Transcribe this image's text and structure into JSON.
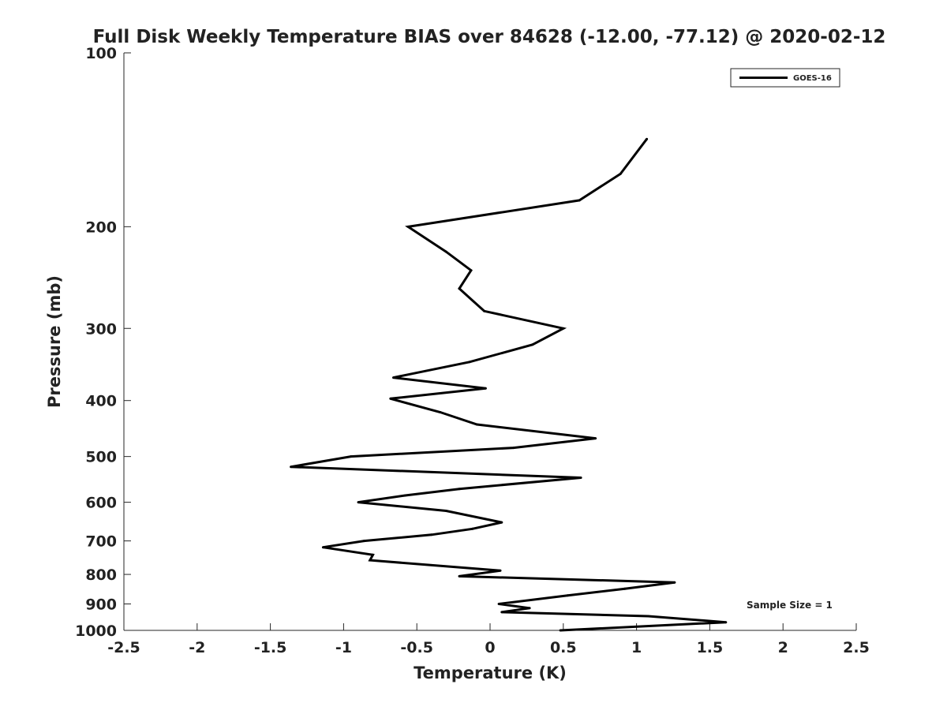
{
  "chart_data": {
    "type": "line",
    "title": "Full Disk Weekly Temperature BIAS over 84628 (-12.00, -77.12) @ 2020-02-12",
    "xlabel": "Temperature (K)",
    "ylabel": "Pressure (mb)",
    "xlim": [
      -2.5,
      2.5
    ],
    "ylim": [
      100,
      1000
    ],
    "y_scale": "log",
    "y_reversed": true,
    "grid": false,
    "legend_position": "top-right",
    "x_ticks": [
      "-2.5",
      "-2",
      "-1.5",
      "-1",
      "-0.5",
      "0",
      "0.5",
      "1",
      "1.5",
      "2",
      "2.5"
    ],
    "x_tick_values": [
      -2.5,
      -2,
      -1.5,
      -1,
      -0.5,
      0,
      0.5,
      1,
      1.5,
      2,
      2.5
    ],
    "y_ticks": [
      "100",
      "200",
      "300",
      "400",
      "500",
      "600",
      "700",
      "800",
      "900",
      "1000"
    ],
    "y_tick_values": [
      100,
      200,
      300,
      400,
      500,
      600,
      700,
      800,
      900,
      1000
    ],
    "series": [
      {
        "name": "GOES-16",
        "color": "#000000",
        "points": [
          {
            "x": 1.07,
            "p": 141
          },
          {
            "x": 0.89,
            "p": 162
          },
          {
            "x": 0.61,
            "p": 180
          },
          {
            "x": -0.56,
            "p": 200
          },
          {
            "x": -0.3,
            "p": 221
          },
          {
            "x": -0.13,
            "p": 238
          },
          {
            "x": -0.21,
            "p": 256
          },
          {
            "x": -0.04,
            "p": 280
          },
          {
            "x": 0.5,
            "p": 300
          },
          {
            "x": 0.29,
            "p": 320
          },
          {
            "x": -0.14,
            "p": 343
          },
          {
            "x": -0.66,
            "p": 365
          },
          {
            "x": -0.03,
            "p": 381
          },
          {
            "x": -0.68,
            "p": 397
          },
          {
            "x": -0.34,
            "p": 419
          },
          {
            "x": -0.09,
            "p": 440
          },
          {
            "x": 0.72,
            "p": 465
          },
          {
            "x": 0.16,
            "p": 483
          },
          {
            "x": -0.95,
            "p": 500
          },
          {
            "x": -1.36,
            "p": 521
          },
          {
            "x": 0.62,
            "p": 544
          },
          {
            "x": -0.21,
            "p": 569
          },
          {
            "x": -0.58,
            "p": 584
          },
          {
            "x": -0.9,
            "p": 600
          },
          {
            "x": -0.3,
            "p": 621
          },
          {
            "x": 0.08,
            "p": 650
          },
          {
            "x": -0.12,
            "p": 667
          },
          {
            "x": -0.4,
            "p": 683
          },
          {
            "x": -0.86,
            "p": 700
          },
          {
            "x": -1.14,
            "p": 718
          },
          {
            "x": -0.8,
            "p": 740
          },
          {
            "x": -0.82,
            "p": 756
          },
          {
            "x": 0.07,
            "p": 788
          },
          {
            "x": -0.21,
            "p": 806
          },
          {
            "x": 1.26,
            "p": 826
          },
          {
            "x": 0.92,
            "p": 847
          },
          {
            "x": 0.53,
            "p": 870
          },
          {
            "x": 0.06,
            "p": 900
          },
          {
            "x": 0.27,
            "p": 915
          },
          {
            "x": 0.08,
            "p": 930
          },
          {
            "x": 1.08,
            "p": 945
          },
          {
            "x": 1.61,
            "p": 968
          },
          {
            "x": 0.48,
            "p": 1000
          }
        ]
      }
    ],
    "legend": [
      {
        "label": "GOES-16",
        "color": "#000000"
      }
    ],
    "annotation": "Sample Size = 1"
  }
}
